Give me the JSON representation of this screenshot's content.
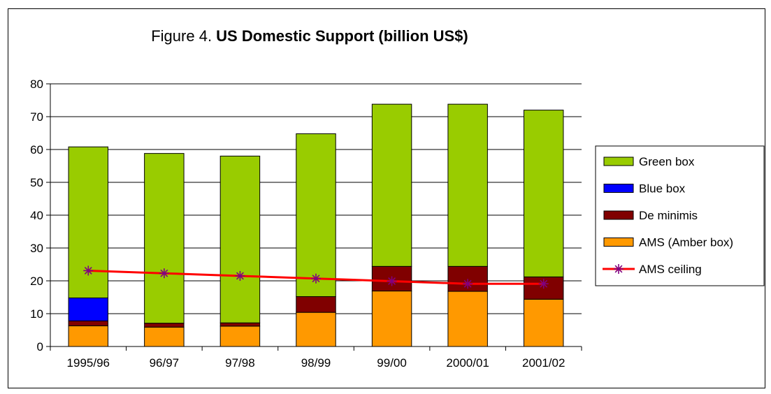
{
  "chart_data": {
    "type": "bar",
    "title_prefix": "Figure 4. ",
    "title_bold": "US Domestic Support (billion US$)",
    "categories": [
      "1995/96",
      "96/97",
      "97/98",
      "98/99",
      "99/00",
      "2000/01",
      "2001/02"
    ],
    "ylim": [
      0,
      80
    ],
    "yticks": [
      0,
      10,
      20,
      30,
      40,
      50,
      60,
      70,
      80
    ],
    "grid": true,
    "legend_position": "right",
    "stacked_series": [
      {
        "name": "AMS (Amber box)",
        "color": "#ff9900",
        "values": [
          6.3,
          5.9,
          6.2,
          10.4,
          16.9,
          16.8,
          14.4
        ]
      },
      {
        "name": "De minimis",
        "color": "#800000",
        "values": [
          1.5,
          1.2,
          1.0,
          4.8,
          7.5,
          7.6,
          6.8
        ]
      },
      {
        "name": "Blue box",
        "color": "#0000ff",
        "values": [
          7.0,
          0,
          0,
          0,
          0,
          0,
          0
        ]
      },
      {
        "name": "Green box",
        "color": "#99cc00",
        "values": [
          46.0,
          51.7,
          50.8,
          49.6,
          49.4,
          49.4,
          50.8
        ]
      }
    ],
    "line_series": {
      "name": "AMS ceiling",
      "line_color": "#ff0000",
      "marker_color": "#800080",
      "values": [
        23.1,
        22.3,
        21.5,
        20.7,
        19.9,
        19.1,
        19.1
      ]
    },
    "legend_order": [
      "Green box",
      "Blue box",
      "De minimis",
      "AMS (Amber box)",
      "AMS ceiling"
    ]
  }
}
